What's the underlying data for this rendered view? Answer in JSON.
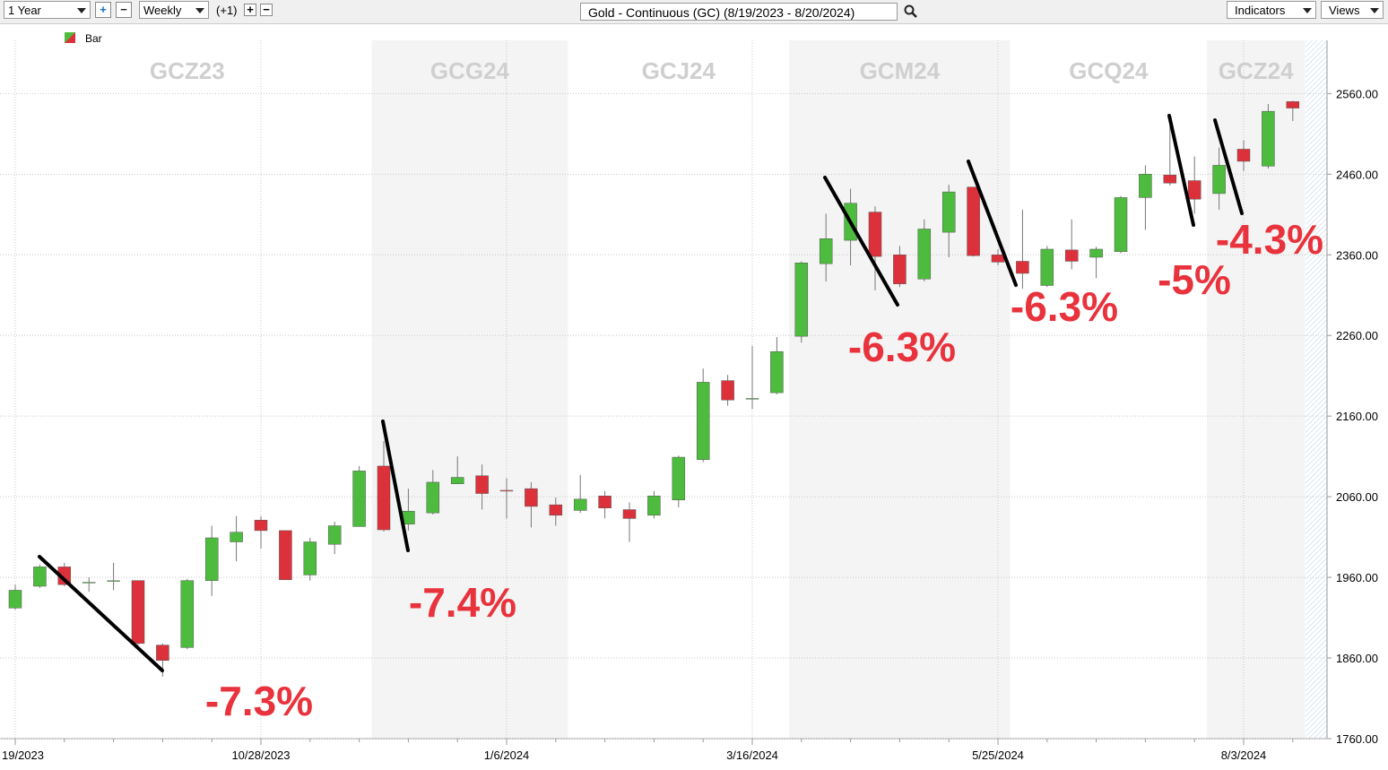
{
  "toolbar": {
    "range": "1 Year",
    "interval": "Weekly",
    "offset": "(+1)",
    "title": "Gold - Continuous (GC) (8/19/2023 - 8/20/2024)",
    "indicators": "Indicators",
    "views": "Views"
  },
  "chart_data": {
    "type": "candlestick",
    "legend": "Bar",
    "up_color": "#4dbb3d",
    "down_color": "#dc313b",
    "grid": true,
    "categories": [
      "19/2023",
      null,
      null,
      null,
      null,
      null,
      null,
      null,
      null,
      null,
      "10/28/2023",
      null,
      null,
      null,
      null,
      null,
      null,
      null,
      null,
      null,
      "1/6/2024",
      null,
      null,
      null,
      null,
      null,
      null,
      null,
      null,
      null,
      "3/16/2024",
      null,
      null,
      null,
      null,
      null,
      null,
      null,
      null,
      null,
      "5/25/2024",
      null,
      null,
      null,
      null,
      null,
      null,
      null,
      null,
      null,
      "8/3/2024",
      null,
      null
    ],
    "open": [
      1922,
      1949,
      1973,
      1953,
      1955,
      1956,
      1876,
      1873,
      1956,
      2004,
      2031,
      2018,
      1963,
      2001,
      2023,
      2098,
      2026,
      2040,
      2076,
      2086,
      2068,
      2070,
      2050,
      2043,
      2061,
      2044,
      2037,
      2056,
      2106,
      2204,
      2181,
      2189,
      2259,
      2349,
      2378,
      2413,
      2360,
      2330,
      2388,
      2444,
      2360,
      2352,
      2322,
      2366,
      2357,
      2364,
      2431,
      2459,
      2452,
      2436,
      2491,
      2470,
      2550
    ],
    "high": [
      1951,
      1976,
      1978,
      1960,
      1978,
      1956,
      1878,
      1958,
      2024,
      2036,
      2036,
      2018,
      2009,
      2029,
      2098,
      2129,
      2070,
      2093,
      2110,
      2100,
      2083,
      2078,
      2059,
      2087,
      2067,
      2053,
      2067,
      2111,
      2219,
      2211,
      2247,
      2258,
      2352,
      2411,
      2442,
      2420,
      2371,
      2404,
      2447,
      2444,
      2367,
      2416,
      2371,
      2404,
      2370,
      2433,
      2471,
      2533,
      2482,
      2493,
      2502,
      2547,
      2551
    ],
    "low": [
      1920,
      1947,
      1949,
      1942,
      1944,
      1876,
      1837,
      1871,
      1937,
      1980,
      1996,
      1957,
      1956,
      1989,
      2023,
      2017,
      2018,
      2038,
      2076,
      2044,
      2033,
      2022,
      2024,
      2040,
      2033,
      2004,
      2033,
      2047,
      2103,
      2173,
      2169,
      2187,
      2251,
      2327,
      2347,
      2316,
      2320,
      2327,
      2357,
      2358,
      2347,
      2318,
      2320,
      2342,
      2331,
      2362,
      2391,
      2446,
      2411,
      2416,
      2464,
      2467,
      2526
    ],
    "close": [
      1944,
      1973,
      1951,
      1954,
      1956,
      1878,
      1857,
      1956,
      2009,
      2016,
      2018,
      1957,
      2004,
      2024,
      2092,
      2019,
      2042,
      2078,
      2084,
      2064,
      2067,
      2048,
      2037,
      2057,
      2046,
      2033,
      2061,
      2109,
      2202,
      2180,
      2182,
      2240,
      2350,
      2380,
      2424,
      2358,
      2324,
      2392,
      2438,
      2359,
      2351,
      2337,
      2367,
      2352,
      2367,
      2431,
      2460,
      2449,
      2429,
      2471,
      2476,
      2538,
      2542
    ],
    "ylim": [
      1760,
      2626
    ],
    "yticks": [
      {
        "value": 1760,
        "label": "1760.00"
      },
      {
        "value": 1860,
        "label": "1860.00"
      },
      {
        "value": 1960,
        "label": "1960.00"
      },
      {
        "value": 2060,
        "label": "2060.00"
      },
      {
        "value": 2160,
        "label": "2160.00"
      },
      {
        "value": 2260,
        "label": "2260.00"
      },
      {
        "value": 2360,
        "label": "2360.00"
      },
      {
        "value": 2460,
        "label": "2460.00"
      },
      {
        "value": 2560,
        "label": "2560.00"
      }
    ],
    "contracts": [
      "GCZ23",
      "GCG24",
      "GCJ24",
      "GCM24",
      "GCQ24",
      "GCZ24"
    ],
    "annotations": [
      "-7.3%",
      "-7.4%",
      "-6.3%",
      "-6.3%",
      "-5%",
      "-4.3%"
    ]
  }
}
